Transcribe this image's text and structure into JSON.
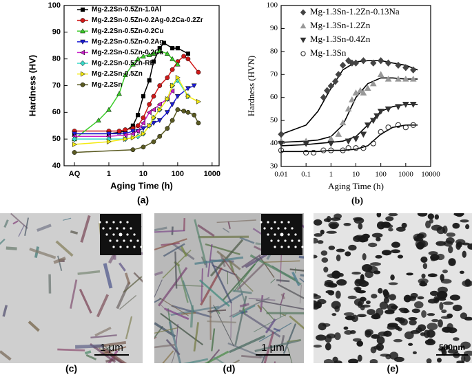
{
  "chart_data": [
    {
      "type": "line",
      "label": "(a)",
      "x_label": "Aging Time (h)",
      "y_label": "Hardness (HV)",
      "log_x": true,
      "xlim": [
        0.05,
        1600
      ],
      "ylim": [
        40,
        100
      ],
      "xticks": [
        {
          "value": 0.1,
          "label": "AQ"
        },
        1,
        10,
        100,
        1000
      ],
      "yticks": [
        40,
        50,
        60,
        70,
        80,
        90,
        100
      ],
      "legend": "top-left",
      "series": [
        {
          "name": "Mg-2.2Sn-0.5Zn-1.0Al",
          "color": "#000000",
          "marker": "square",
          "x": [
            0.1,
            1,
            2,
            3,
            5,
            7,
            10,
            15,
            20,
            30,
            40,
            70,
            100,
            200
          ],
          "values": [
            52,
            52,
            52.5,
            53,
            55,
            59,
            66,
            72,
            79,
            84,
            86,
            84,
            84,
            82
          ]
        },
        {
          "name": "Mg-2.2Sn-0.5Zn-0.2Ag-0.2Ca-0.2Zr",
          "color": "#d01818",
          "marker": "circle",
          "x": [
            0.1,
            1,
            2,
            3,
            5,
            7,
            10,
            15,
            20,
            30,
            50,
            70,
            100,
            150,
            200,
            400
          ],
          "values": [
            53,
            53,
            53,
            53.5,
            54,
            55,
            58,
            63,
            66,
            70,
            73,
            76,
            79,
            81,
            80,
            75
          ]
        },
        {
          "name": "Mg-2.2Sn-0.5Zn-0.2Cu",
          "color": "#3ccc2a",
          "marker": "tri-up",
          "x": [
            0.1,
            0.5,
            1,
            2,
            3,
            5,
            7,
            10,
            15,
            20,
            30,
            50,
            70,
            100
          ],
          "values": [
            50,
            57,
            61,
            67,
            74,
            78,
            80,
            81,
            81.5,
            82,
            83,
            82,
            80,
            78
          ]
        },
        {
          "name": "Mg-2.2Sn-0.5Zn-0.2Ag",
          "color": "#1c1cd8",
          "marker": "tri-down",
          "x": [
            0.1,
            1,
            3,
            5,
            7,
            10,
            20,
            30,
            50,
            70,
            100,
            200,
            300
          ],
          "values": [
            52,
            52,
            52,
            53,
            53,
            54,
            56,
            57,
            60,
            63,
            66,
            69,
            70
          ]
        },
        {
          "name": "Mg-2.2Sn-0.5Zn-0.2Ca",
          "color": "#c81ec8",
          "marker": "tri-left",
          "x": [
            0.1,
            1,
            3,
            5,
            7,
            10,
            15,
            20,
            30,
            50,
            70
          ],
          "values": [
            51,
            51,
            51.5,
            52,
            53,
            56,
            60,
            61,
            63,
            65,
            68
          ]
        },
        {
          "name": "Mg-2.2Sn-0.5Zn-RE",
          "color": "#38d8c8",
          "marker": "diamond",
          "x": [
            0.1,
            1,
            3,
            7,
            10,
            15,
            20,
            30,
            50,
            70,
            100,
            200
          ],
          "values": [
            50,
            50,
            50,
            51,
            52,
            55,
            58,
            61,
            65,
            70,
            72,
            66
          ]
        },
        {
          "name": "Mg-2.2Sn-0.5Zn",
          "color": "#f4ea10",
          "marker": "tri-right",
          "x": [
            0.1,
            1,
            3,
            5,
            10,
            15,
            20,
            30,
            50,
            70,
            100,
            200,
            400
          ],
          "values": [
            48,
            49,
            50,
            50.5,
            52,
            55,
            58,
            61,
            65,
            70,
            73,
            66,
            64
          ]
        },
        {
          "name": "Mg-2.2Sn",
          "color": "#5a5a22",
          "marker": "circle",
          "x": [
            0.1,
            5,
            10,
            20,
            30,
            50,
            70,
            100,
            150,
            200,
            300,
            400
          ],
          "values": [
            45,
            46,
            47,
            49,
            51,
            54,
            57,
            61,
            60.5,
            60,
            59,
            56
          ]
        }
      ]
    },
    {
      "type": "scatter",
      "label": "(b)",
      "x_label": "Aging Time (h)",
      "y_label": "Hardness (HVN)",
      "log_x": true,
      "xlim": [
        0.01,
        10000
      ],
      "ylim": [
        30,
        100
      ],
      "xticks": [
        0.01,
        0.1,
        1,
        10,
        100,
        1000,
        10000
      ],
      "yticks": [
        30,
        40,
        50,
        60,
        70,
        80,
        90,
        100
      ],
      "legend": "top-left",
      "fit_x": [
        0.01,
        0.1,
        0.3,
        1,
        3,
        10,
        30,
        100,
        300,
        1000,
        3000
      ],
      "series": [
        {
          "name": "Mg-1.3Sn-1.2Zn-0.13Na",
          "color": "#444444",
          "marker": "diamond",
          "x": [
            0.01,
            0.5,
            0.7,
            1,
            1.5,
            2,
            3,
            5,
            7,
            10,
            20,
            50,
            100,
            200,
            500,
            1000,
            2000
          ],
          "values": [
            44,
            60,
            63,
            65,
            67,
            70,
            74,
            76,
            75,
            75,
            76,
            75,
            76,
            75,
            74,
            73,
            72
          ],
          "fit": [
            44,
            48,
            54,
            64,
            72,
            75.5,
            76,
            76,
            75,
            74,
            72
          ]
        },
        {
          "name": "Mg-1.3Sn-1.2Zn",
          "color": "#999999",
          "marker": "tri-up",
          "x": [
            0.01,
            0.1,
            1,
            2,
            3,
            5,
            7,
            10,
            15,
            20,
            30,
            50,
            100,
            200,
            500,
            1000,
            2000
          ],
          "values": [
            41,
            41,
            42,
            44,
            49,
            55,
            59,
            62,
            63,
            62,
            64,
            66,
            70,
            68,
            68,
            68,
            68
          ],
          "fit": [
            40.5,
            41,
            41.5,
            43,
            48,
            60,
            66,
            68.5,
            68.5,
            68,
            68
          ]
        },
        {
          "name": "Mg-1.3Sn-0.4Zn",
          "color": "#333333",
          "marker": "tri-down",
          "x": [
            0.01,
            0.1,
            1,
            5,
            10,
            20,
            30,
            50,
            70,
            100,
            200,
            500,
            1000,
            2000
          ],
          "values": [
            40,
            40,
            40,
            41,
            42,
            44,
            48,
            50,
            52,
            54,
            55,
            56,
            57,
            57
          ],
          "fit": [
            39,
            39.5,
            40,
            40.5,
            41,
            43,
            48,
            54,
            56,
            57,
            57
          ]
        },
        {
          "name": "Mg-1.3Sn",
          "color": "#222222",
          "marker": "circle-open",
          "x": [
            0.01,
            0.1,
            0.2,
            0.5,
            1,
            3,
            5,
            10,
            20,
            50,
            100,
            200,
            500,
            1000,
            2000
          ],
          "values": [
            37,
            36,
            36,
            37,
            37,
            37,
            38,
            38,
            38,
            40,
            45,
            47,
            48,
            47,
            48
          ],
          "fit": [
            36.5,
            36.5,
            36.5,
            37,
            37,
            37.5,
            39,
            44,
            47,
            48,
            48
          ]
        }
      ]
    }
  ],
  "images": [
    {
      "label": "(c)",
      "scale_bar": "1 μm"
    },
    {
      "label": "(d)",
      "scale_bar": "1 μm"
    },
    {
      "label": "(e)",
      "scale_bar": "500nm"
    }
  ]
}
